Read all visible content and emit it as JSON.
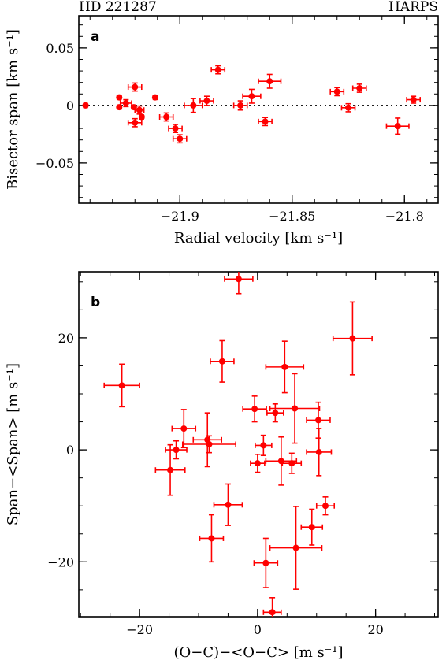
{
  "header": {
    "left": "HD 221287",
    "right": "HARPS"
  },
  "colors": {
    "points": "#ff0000",
    "axes": "#000000"
  },
  "chart_data": [
    {
      "type": "scatter",
      "panel_label": "a",
      "xlabel": "Radial velocity [km s⁻¹]",
      "ylabel": "Bisector span [km s⁻¹]",
      "xlim": [
        -21.945,
        -21.785
      ],
      "ylim": [
        -0.085,
        0.078
      ],
      "xticks": [
        -21.9,
        -21.85,
        -21.8
      ],
      "xtick_labels": [
        "−21.9",
        "−21.85",
        "−21.8"
      ],
      "yticks": [
        -0.05,
        0,
        0.05
      ],
      "ytick_labels": [
        "−0.05",
        "0",
        "0.05"
      ],
      "reference_line": {
        "y": 0,
        "style": "dotted"
      },
      "points": [
        {
          "x": -21.942,
          "y": 0.0,
          "xerr": 0.0008,
          "yerr": 0.0012
        },
        {
          "x": -21.927,
          "y": 0.007,
          "xerr": 0.0008,
          "yerr": 0.0012
        },
        {
          "x": -21.927,
          "y": -0.0015,
          "xerr": 0.0008,
          "yerr": 0.0012
        },
        {
          "x": -21.924,
          "y": 0.002,
          "xerr": 0.0025,
          "yerr": 0.003
        },
        {
          "x": -21.92,
          "y": 0.016,
          "xerr": 0.003,
          "yerr": 0.0035
        },
        {
          "x": -21.92,
          "y": -0.015,
          "xerr": 0.003,
          "yerr": 0.0035
        },
        {
          "x": -21.918,
          "y": -0.004,
          "xerr": 0.002,
          "yerr": 0.0035
        },
        {
          "x": -21.917,
          "y": -0.01,
          "xerr": 0.0008,
          "yerr": 0.0012
        },
        {
          "x": -21.9205,
          "y": -0.0015,
          "xerr": 0.0008,
          "yerr": 0.0012
        },
        {
          "x": -21.911,
          "y": 0.007,
          "xerr": 0.0008,
          "yerr": 0.0012
        },
        {
          "x": -21.906,
          "y": -0.01,
          "xerr": 0.003,
          "yerr": 0.0035
        },
        {
          "x": -21.902,
          "y": -0.02,
          "xerr": 0.003,
          "yerr": 0.0035
        },
        {
          "x": -21.9,
          "y": -0.029,
          "xerr": 0.003,
          "yerr": 0.0035
        },
        {
          "x": -21.894,
          "y": 0.0,
          "xerr": 0.004,
          "yerr": 0.006
        },
        {
          "x": -21.888,
          "y": 0.004,
          "xerr": 0.003,
          "yerr": 0.004
        },
        {
          "x": -21.883,
          "y": 0.031,
          "xerr": 0.003,
          "yerr": 0.0035
        },
        {
          "x": -21.873,
          "y": 0.0,
          "xerr": 0.003,
          "yerr": 0.004
        },
        {
          "x": -21.868,
          "y": 0.008,
          "xerr": 0.004,
          "yerr": 0.006
        },
        {
          "x": -21.862,
          "y": -0.014,
          "xerr": 0.003,
          "yerr": 0.0035
        },
        {
          "x": -21.86,
          "y": 0.021,
          "xerr": 0.005,
          "yerr": 0.006
        },
        {
          "x": -21.83,
          "y": 0.012,
          "xerr": 0.003,
          "yerr": 0.0035
        },
        {
          "x": -21.825,
          "y": -0.002,
          "xerr": 0.003,
          "yerr": 0.0035
        },
        {
          "x": -21.82,
          "y": 0.015,
          "xerr": 0.003,
          "yerr": 0.0035
        },
        {
          "x": -21.803,
          "y": -0.018,
          "xerr": 0.005,
          "yerr": 0.007
        },
        {
          "x": -21.796,
          "y": 0.005,
          "xerr": 0.003,
          "yerr": 0.003
        }
      ]
    },
    {
      "type": "scatter",
      "panel_label": "b",
      "xlabel": "(O−C)−<O−C> [m s⁻¹]",
      "ylabel": "Span−<Span> [m s⁻¹]",
      "xlim": [
        -30.3,
        30.6
      ],
      "ylim": [
        -29.8,
        31.8
      ],
      "xticks": [
        -20,
        0,
        20
      ],
      "xtick_labels": [
        "−20",
        "0",
        "20"
      ],
      "yticks": [
        -20,
        0,
        20
      ],
      "ytick_labels": [
        "−20",
        "0",
        "20"
      ],
      "points": [
        {
          "x": -23.0,
          "y": 11.5,
          "xerr": 3.0,
          "yerr": 3.8
        },
        {
          "x": -14.8,
          "y": -3.6,
          "xerr": 2.5,
          "yerr": 4.5
        },
        {
          "x": -13.8,
          "y": 0.0,
          "xerr": 1.8,
          "yerr": 1.6
        },
        {
          "x": -12.5,
          "y": 3.8,
          "xerr": 2.0,
          "yerr": 3.4
        },
        {
          "x": -8.5,
          "y": 1.8,
          "xerr": 2.4,
          "yerr": 4.8
        },
        {
          "x": -8.2,
          "y": 1.0,
          "xerr": 4.5,
          "yerr": 1.5
        },
        {
          "x": -7.8,
          "y": -15.8,
          "xerr": 2.0,
          "yerr": 4.2
        },
        {
          "x": -6.0,
          "y": 15.8,
          "xerr": 2.0,
          "yerr": 3.7
        },
        {
          "x": -5.0,
          "y": -9.8,
          "xerr": 2.4,
          "yerr": 3.7
        },
        {
          "x": -3.2,
          "y": 30.5,
          "xerr": 2.4,
          "yerr": 2.6
        },
        {
          "x": -0.5,
          "y": 7.3,
          "xerr": 2.0,
          "yerr": 2.3
        },
        {
          "x": 0.0,
          "y": -2.4,
          "xerr": 1.2,
          "yerr": 1.6
        },
        {
          "x": 1.0,
          "y": 0.8,
          "xerr": 1.4,
          "yerr": 1.8
        },
        {
          "x": 1.4,
          "y": -20.2,
          "xerr": 2.0,
          "yerr": 4.4
        },
        {
          "x": 2.5,
          "y": -29.0,
          "xerr": 1.5,
          "yerr": 2.6
        },
        {
          "x": 3.0,
          "y": 6.6,
          "xerr": 1.4,
          "yerr": 1.6
        },
        {
          "x": 4.0,
          "y": -2.0,
          "xerr": 2.6,
          "yerr": 4.3
        },
        {
          "x": 4.6,
          "y": 14.8,
          "xerr": 3.2,
          "yerr": 4.6
        },
        {
          "x": 5.8,
          "y": -2.4,
          "xerr": 1.6,
          "yerr": 1.8
        },
        {
          "x": 6.3,
          "y": 7.4,
          "xerr": 4.2,
          "yerr": 6.2
        },
        {
          "x": 6.5,
          "y": -17.5,
          "xerr": 4.4,
          "yerr": 7.4
        },
        {
          "x": 9.2,
          "y": -13.8,
          "xerr": 1.8,
          "yerr": 3.2
        },
        {
          "x": 10.3,
          "y": 5.3,
          "xerr": 2.0,
          "yerr": 3.2
        },
        {
          "x": 10.4,
          "y": -0.4,
          "xerr": 2.1,
          "yerr": 4.2
        },
        {
          "x": 11.5,
          "y": -10.0,
          "xerr": 1.5,
          "yerr": 1.6
        },
        {
          "x": 16.1,
          "y": 19.9,
          "xerr": 3.3,
          "yerr": 6.5
        }
      ]
    }
  ]
}
